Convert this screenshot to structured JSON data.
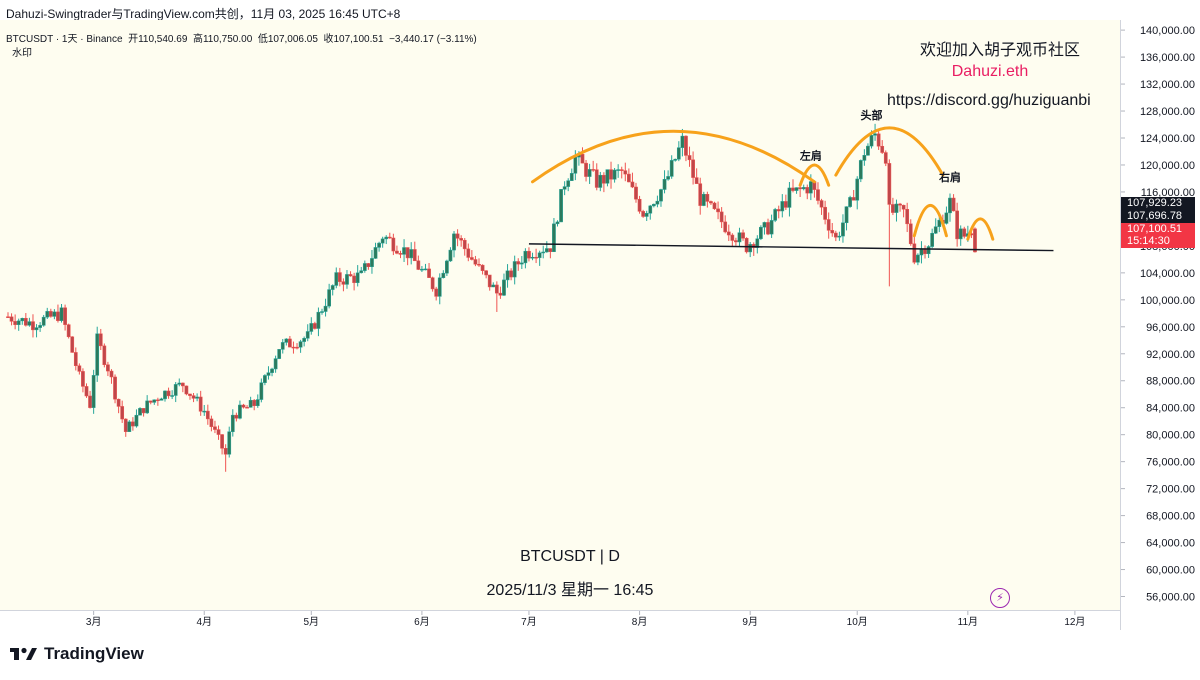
{
  "header": {
    "title": "Dahuzi-Swingtrader与TradingView.com共创，11月 03, 2025 16:45 UTC+8"
  },
  "legend": {
    "symbol": "BTCUSDT · 1天 · Binance",
    "open_label": "开",
    "open": "110,540.69",
    "high_label": "高",
    "high": "110,750.00",
    "low_label": "低",
    "low": "107,006.05",
    "close_label": "收",
    "close": "107,100.51",
    "change": "−3,440.17 (−3.11%)",
    "watermark_label": "水印"
  },
  "watermark": {
    "line1": "欢迎加入胡子观币社区",
    "line2": "Dahuzi.eth",
    "line3": "https://discord.gg/huziguanbi",
    "symbol_line": "BTCUSDT | D",
    "date_line": "2025/11/3 星期一 16:45"
  },
  "annotations": {
    "left_shoulder": "左肩",
    "head": "头部",
    "right_shoulder": "右肩"
  },
  "price_tags": [
    {
      "value": "107,929.23",
      "bg": "#131722",
      "fg": "#ffffff"
    },
    {
      "value": "107,696.78",
      "bg": "#131722",
      "fg": "#ffffff"
    },
    {
      "value": "107,100.51",
      "bg": "#f23645",
      "fg": "#ffffff"
    },
    {
      "value": "15:14:30",
      "bg": "#f23645",
      "fg": "#ffffff"
    }
  ],
  "brand": {
    "name": "TradingView"
  },
  "colors": {
    "up": "#26a69a",
    "down": "#ef5350",
    "candle_body_up": "#2c7a5d",
    "candle_body_down": "#c0474a",
    "arc": "#f7a21b",
    "neckline": "#131722",
    "pink": "#e91e63"
  },
  "chart_data": {
    "type": "candlestick",
    "symbol": "BTCUSDT",
    "interval": "1D",
    "y_axis": {
      "ticks": [
        56000,
        60000,
        64000,
        68000,
        72000,
        76000,
        80000,
        84000,
        88000,
        92000,
        96000,
        100000,
        104000,
        108000,
        112000,
        116000,
        120000,
        124000,
        128000,
        132000,
        136000,
        140000
      ],
      "tick_labels": [
        "56,000.00",
        "60,000.00",
        "64,000.00",
        "68,000.00",
        "72,000.00",
        "76,000.00",
        "80,000.00",
        "84,000.00",
        "88,000.00",
        "92,000.00",
        "96,000.00",
        "100,000.00",
        "104,000.00",
        "108,000.00",
        "112,000.00",
        "116,000.00",
        "120,000.00",
        "124,000.00",
        "128,000.00",
        "132,000.00",
        "136,000.00",
        "140,000.00"
      ],
      "range": [
        54000,
        141500
      ]
    },
    "x_axis": {
      "range": [
        "2025-02-05",
        "2025-12-10"
      ],
      "ticks": [
        {
          "label": "3月",
          "date": "2025-03-01"
        },
        {
          "label": "4月",
          "date": "2025-04-01"
        },
        {
          "label": "5月",
          "date": "2025-05-01"
        },
        {
          "label": "6月",
          "date": "2025-06-01"
        },
        {
          "label": "7月",
          "date": "2025-07-01"
        },
        {
          "label": "8月",
          "date": "2025-08-01"
        },
        {
          "label": "9月",
          "date": "2025-09-01"
        },
        {
          "label": "10月",
          "date": "2025-10-01"
        },
        {
          "label": "11月",
          "date": "2025-11-01"
        },
        {
          "label": "12月",
          "date": "2025-12-01"
        }
      ]
    },
    "close_anchors": [
      [
        "2025-02-05",
        97500
      ],
      [
        "2025-02-12",
        96500
      ],
      [
        "2025-02-20",
        98000
      ],
      [
        "2025-02-25",
        88500
      ],
      [
        "2025-02-28",
        84500
      ],
      [
        "2025-03-02",
        94000
      ],
      [
        "2025-03-05",
        90000
      ],
      [
        "2025-03-10",
        80500
      ],
      [
        "2025-03-15",
        84000
      ],
      [
        "2025-03-20",
        86000
      ],
      [
        "2025-03-26",
        87500
      ],
      [
        "2025-04-01",
        83500
      ],
      [
        "2025-04-07",
        77000
      ],
      [
        "2025-04-09",
        83000
      ],
      [
        "2025-04-15",
        84500
      ],
      [
        "2025-04-22",
        93000
      ],
      [
        "2025-04-30",
        94500
      ],
      [
        "2025-05-08",
        103000
      ],
      [
        "2025-05-15",
        103500
      ],
      [
        "2025-05-21",
        109500
      ],
      [
        "2025-05-28",
        107000
      ],
      [
        "2025-06-05",
        101500
      ],
      [
        "2025-06-10",
        110000
      ],
      [
        "2025-06-17",
        104500
      ],
      [
        "2025-06-22",
        101000
      ],
      [
        "2025-06-30",
        107000
      ],
      [
        "2025-07-07",
        108000
      ],
      [
        "2025-07-11",
        117500
      ],
      [
        "2025-07-14",
        121000
      ],
      [
        "2025-07-20",
        117500
      ],
      [
        "2025-07-27",
        119000
      ],
      [
        "2025-08-02",
        113000
      ],
      [
        "2025-08-08",
        117000
      ],
      [
        "2025-08-13",
        123500
      ],
      [
        "2025-08-18",
        115000
      ],
      [
        "2025-08-26",
        110500
      ],
      [
        "2025-08-31",
        108000
      ],
      [
        "2025-09-06",
        110800
      ],
      [
        "2025-09-12",
        115500
      ],
      [
        "2025-09-18",
        117000
      ],
      [
        "2025-09-25",
        109000
      ],
      [
        "2025-09-29",
        114000
      ],
      [
        "2025-10-03",
        122000
      ],
      [
        "2025-10-06",
        124500
      ],
      [
        "2025-10-09",
        121500
      ],
      [
        "2025-10-10",
        113000
      ],
      [
        "2025-10-14",
        113000
      ],
      [
        "2025-10-17",
        106500
      ],
      [
        "2025-10-21",
        108500
      ],
      [
        "2025-10-27",
        114500
      ],
      [
        "2025-10-29",
        110000
      ],
      [
        "2025-10-31",
        109500
      ],
      [
        "2025-11-02",
        110500
      ],
      [
        "2025-11-03",
        107100
      ]
    ],
    "extremes": [
      {
        "date": "2025-04-07",
        "low": 74500
      },
      {
        "date": "2025-06-22",
        "low": 98200
      },
      {
        "date": "2025-08-14",
        "high": 124400
      },
      {
        "date": "2025-10-06",
        "high": 126100
      },
      {
        "date": "2025-10-10",
        "low": 102000
      }
    ],
    "last_candle": {
      "date": "2025-11-03",
      "open": 110540.69,
      "high": 110750.0,
      "low": 107006.05,
      "close": 107100.51
    },
    "neckline": {
      "x": [
        "2025-07-01",
        "2025-11-25"
      ],
      "y": [
        108300,
        107300
      ]
    },
    "arcs": [
      {
        "name": "arc-1",
        "x": [
          "2025-07-02",
          "2025-09-19"
        ],
        "peak": 125000,
        "base": 117500
      },
      {
        "name": "left-shoulder-arc",
        "x": [
          "2025-09-15",
          "2025-09-23"
        ],
        "peak": 120000,
        "base": 117000
      },
      {
        "name": "head-arc",
        "x": [
          "2025-09-25",
          "2025-10-25"
        ],
        "peak": 125500,
        "base": 118500
      },
      {
        "name": "right-shoulder-arc-1",
        "x": [
          "2025-10-17",
          "2025-10-26"
        ],
        "peak": 114000,
        "base": 109500
      },
      {
        "name": "right-shoulder-arc-2",
        "x": [
          "2025-11-01",
          "2025-11-08"
        ],
        "peak": 112000,
        "base": 109000
      }
    ]
  }
}
